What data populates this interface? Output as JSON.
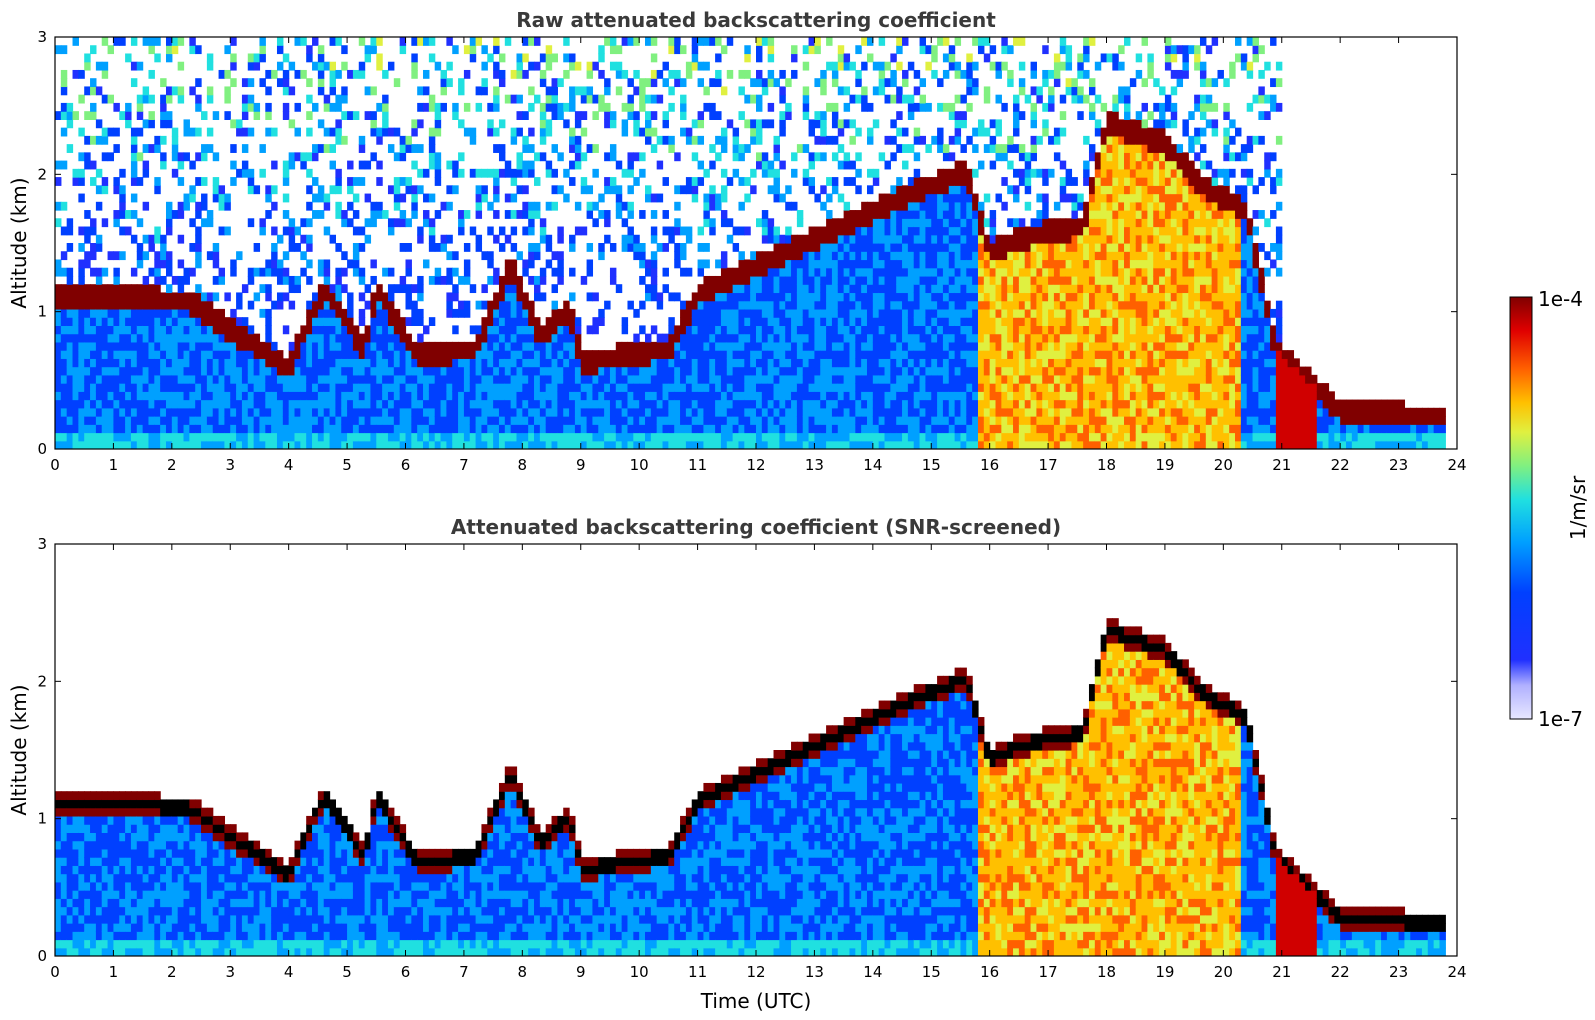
{
  "chart_data": [
    {
      "type": "heatmap",
      "title": "Raw attenuated backscattering coefficient",
      "xlabel": "",
      "ylabel": "Altitude (km)",
      "xlim": [
        0,
        24
      ],
      "ylim": [
        0,
        3
      ],
      "xticks": [
        "0",
        "1",
        "2",
        "3",
        "4",
        "5",
        "6",
        "7",
        "8",
        "9",
        "10",
        "11",
        "12",
        "13",
        "14",
        "15",
        "16",
        "17",
        "18",
        "19",
        "20",
        "21",
        "22",
        "23",
        "24"
      ],
      "yticks": [
        "0",
        "1",
        "2",
        "3"
      ],
      "grid": false,
      "screened": false
    },
    {
      "type": "heatmap",
      "title": "Attenuated backscattering coefficient (SNR-screened)",
      "xlabel": "Time (UTC)",
      "ylabel": "Altitude (km)",
      "xlim": [
        0,
        24
      ],
      "ylim": [
        0,
        3
      ],
      "xticks": [
        "0",
        "1",
        "2",
        "3",
        "4",
        "5",
        "6",
        "7",
        "8",
        "9",
        "10",
        "11",
        "12",
        "13",
        "14",
        "15",
        "16",
        "17",
        "18",
        "19",
        "20",
        "21",
        "22",
        "23",
        "24"
      ],
      "yticks": [
        "0",
        "1",
        "2",
        "3"
      ],
      "grid": false,
      "screened": true
    }
  ],
  "colorbar": {
    "label": "1/m/sr",
    "max_label": "1e-4",
    "min_label": "1e-7",
    "colormap": [
      "#e8e8ff",
      "#b0b0ff",
      "#2030ff",
      "#0040ff",
      "#00a0ff",
      "#20e0e0",
      "#80f080",
      "#e0f040",
      "#ffc000",
      "#ff6000",
      "#e00000",
      "#800000"
    ]
  },
  "cloud_layer_hours_km": [
    [
      0.0,
      1.1
    ],
    [
      2.3,
      1.05
    ],
    [
      4.0,
      0.55
    ],
    [
      4.6,
      1.15
    ],
    [
      5.3,
      0.7
    ],
    [
      5.5,
      1.15
    ],
    [
      6.2,
      0.65
    ],
    [
      7.2,
      0.7
    ],
    [
      7.8,
      1.3
    ],
    [
      8.3,
      0.8
    ],
    [
      8.8,
      1.0
    ],
    [
      9.0,
      0.6
    ],
    [
      10.5,
      0.7
    ],
    [
      11.0,
      1.1
    ],
    [
      14.5,
      1.8
    ],
    [
      15.6,
      2.0
    ],
    [
      16.0,
      1.4
    ],
    [
      16.5,
      1.5
    ],
    [
      17.6,
      1.6
    ],
    [
      18.0,
      2.35
    ],
    [
      19.0,
      2.2
    ],
    [
      19.6,
      1.9
    ],
    [
      20.4,
      1.7
    ],
    [
      20.9,
      0.7
    ],
    [
      21.5,
      0.45
    ],
    [
      22.0,
      0.25
    ],
    [
      23.8,
      0.2
    ]
  ]
}
